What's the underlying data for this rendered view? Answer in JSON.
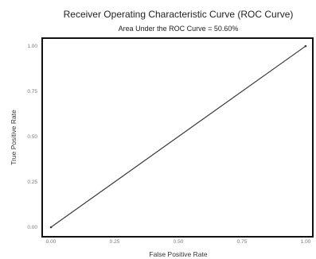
{
  "chart_data": {
    "type": "line",
    "title": "Receiver Operating Characteristic Curve (ROC Curve)",
    "subtitle": "Area Under the ROC Curve = 50.60%",
    "xlabel": "False Positive Rate",
    "ylabel": "True Positive Rate",
    "xlim": [
      0,
      1
    ],
    "ylim": [
      0,
      1
    ],
    "x_ticks": [
      "0.00",
      "0.25",
      "0.50",
      "0.75",
      "1.00"
    ],
    "y_ticks": [
      "0.00",
      "0.25",
      "0.50",
      "0.75",
      "1.00"
    ],
    "grid": false,
    "series": [
      {
        "x": [
          0,
          1
        ],
        "y": [
          0,
          1
        ],
        "color": "#3a3a3a"
      }
    ]
  }
}
